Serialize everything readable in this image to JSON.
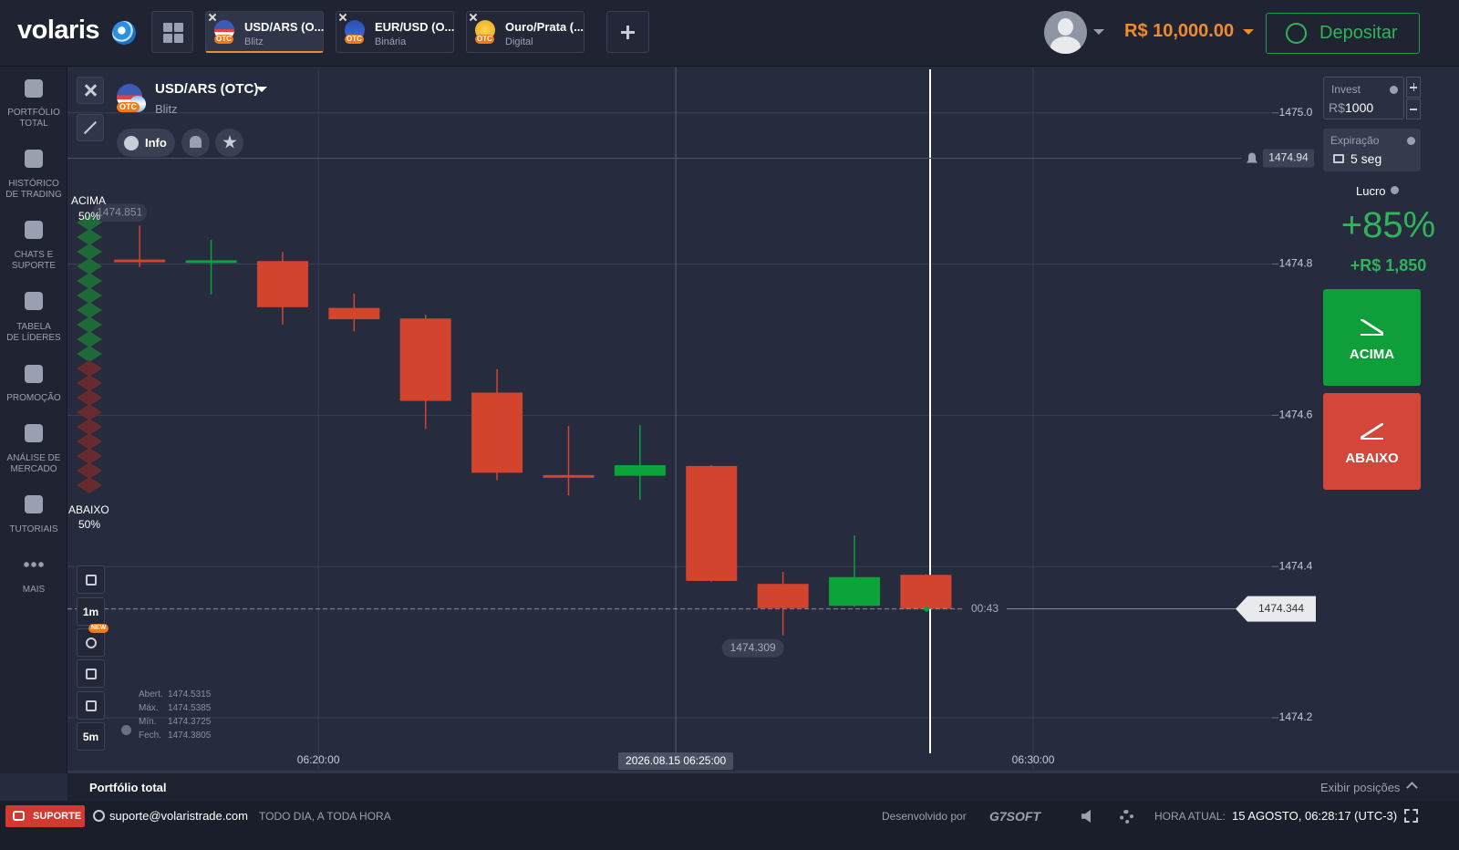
{
  "header": {
    "logo": "volaris",
    "tabs": [
      {
        "title": "USD/ARS (O...",
        "subtitle": "Blitz"
      },
      {
        "title": "EUR/USD (O...",
        "subtitle": "Binária"
      },
      {
        "title": "Ouro/Prata (...",
        "subtitle": "Digital"
      }
    ],
    "otc_badge": "OTC",
    "balance": "R$ 10,000.00",
    "deposit": "Depositar"
  },
  "sidebar": {
    "items": [
      [
        "PORTFÓLIO",
        "TOTAL"
      ],
      [
        "HISTÓRICO",
        "DE TRADING"
      ],
      [
        "CHATS E",
        "SUPORTE"
      ],
      [
        "TABELA",
        "DE LÍDERES"
      ],
      [
        "PROMOÇÃO"
      ],
      [
        "ANÁLISE DE",
        "MERCADO"
      ],
      [
        "TUTORIAIS"
      ],
      [
        "MAIS"
      ]
    ]
  },
  "asset": {
    "name": "USD/ARS (OTC)",
    "mode": "Blitz",
    "info": "Info"
  },
  "sentiment": {
    "up_label": "ACIMA",
    "up_pct": "50%",
    "down_label": "ABAIXO",
    "down_pct": "50%"
  },
  "tools": {
    "timeframe": "1m",
    "candle_period": "5m",
    "new_badge": "NEW"
  },
  "ohlc": {
    "labels": [
      "Abert.",
      "Máx.",
      "Mín.",
      "Fech."
    ],
    "values": [
      1474.5315,
      1474.5385,
      1474.3725,
      1474.3805
    ]
  },
  "chart": {
    "type": "candlestick",
    "x": [
      17.5,
      18.5,
      19.5,
      20.5,
      21.5,
      22.5,
      23.5,
      24.5,
      25.5,
      26.5,
      27.5,
      28.5
    ],
    "open": [
      1474.806,
      1474.803,
      1474.804,
      1474.742,
      1474.728,
      1474.63,
      1474.521,
      1474.52,
      1474.533,
      1474.377,
      1474.348,
      1474.389
    ],
    "high": [
      1474.851,
      1474.832,
      1474.816,
      1474.761,
      1474.733,
      1474.661,
      1474.586,
      1474.587,
      1474.534,
      1474.393,
      1474.441,
      1474.39
    ],
    "low": [
      1474.796,
      1474.76,
      1474.72,
      1474.711,
      1474.582,
      1474.514,
      1474.494,
      1474.488,
      1474.38,
      1474.309,
      1474.347,
      1474.344
    ],
    "close": [
      1474.804,
      1474.805,
      1474.743,
      1474.727,
      1474.619,
      1474.524,
      1474.52,
      1474.534,
      1474.381,
      1474.345,
      1474.386,
      1474.344
    ],
    "up_color": "#0ba33a",
    "down_color": "#d3442f",
    "xlim": [
      16.49,
      33.98
    ],
    "ylim": [
      1474.13,
      1475.06
    ],
    "xticks": [
      {
        "value": 20,
        "label": "06:20:00"
      },
      {
        "value": 30,
        "label": "06:30:00"
      }
    ],
    "yticks": [
      {
        "value": 1475,
        "label": "1475.0"
      },
      1474.8,
      1474.6,
      1474.4,
      1474.2
    ],
    "crosshair": {
      "value": 25,
      "label": "2026.08.15 06:25:00"
    },
    "current_price": 1474.344,
    "countdown": "00:43",
    "alert_price": 1474.94,
    "max_label": 1474.851,
    "min_label": 1474.309
  },
  "trade_panel": {
    "invest_label": "Invest",
    "currency": "R$",
    "invest_value": 1000,
    "expiry_label": "Expiração",
    "expiry_value": "5 seg",
    "profit_label": "Lucro",
    "profit_pct": "+85%",
    "profit_amount": "+R$ 1,850",
    "up_button": "ACIMA",
    "down_button": "ABAIXO"
  },
  "bottom_bar": {
    "title": "Portfólio total",
    "show_positions": "Exibir posições"
  },
  "footer": {
    "support": "SUPORTE",
    "email": "suporte@volaristrade.com",
    "tagline": "TODO DIA, A TODA HORA",
    "developed_by": "Desenvolvido por",
    "developer": "G7SOFT",
    "time_label": "HORA ATUAL:",
    "time_value": "15 AGOSTO, 06:28:17 (UTC-3)"
  }
}
